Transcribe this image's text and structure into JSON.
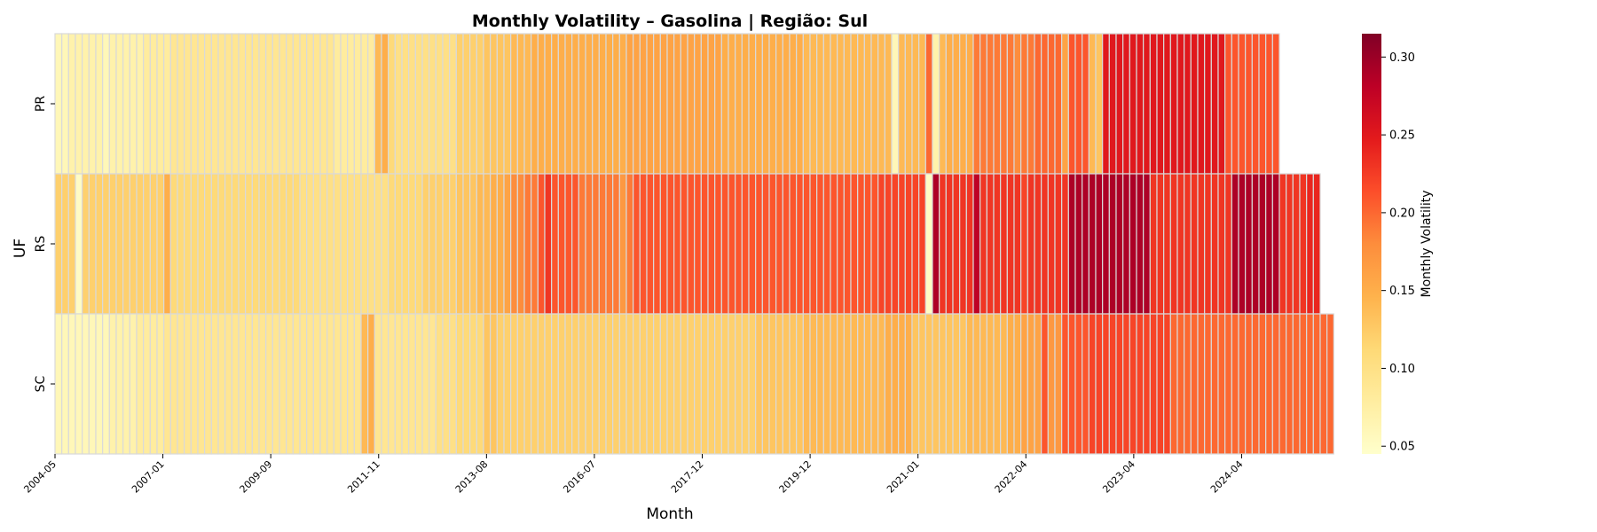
{
  "chart_data": {
    "type": "heatmap",
    "title": "Monthly Volatility – Gasolina | Região: Sul",
    "xlabel": "Month",
    "ylabel": "UF",
    "rows": [
      "PR",
      "RS",
      "SC"
    ],
    "x_tick_labels": [
      "2004-05",
      "2007-01",
      "2009-09",
      "2011-11",
      "2013-08",
      "2016-07",
      "2017-12",
      "2019-12",
      "2021-01",
      "2022-04",
      "2023-04",
      "2024-04"
    ],
    "colorbar": {
      "label": "Monthly Volatility",
      "ticks": [
        0.05,
        0.1,
        0.15,
        0.2,
        0.25,
        0.3
      ],
      "vmin": 0.045,
      "vmax": 0.315,
      "colormap": "YlOrRd"
    },
    "values": {
      "PR": [
        0.06,
        0.06,
        0.07,
        0.07,
        0.07,
        0.07,
        0.07,
        0.06,
        0.07,
        0.07,
        0.07,
        0.07,
        0.07,
        0.08,
        0.08,
        0.08,
        0.08,
        0.09,
        0.09,
        0.09,
        0.09,
        0.09,
        0.09,
        0.09,
        0.09,
        0.09,
        0.09,
        0.09,
        0.09,
        0.09,
        0.09,
        0.09,
        0.09,
        0.09,
        0.09,
        0.09,
        0.09,
        0.09,
        0.09,
        0.09,
        0.09,
        0.08,
        0.08,
        0.08,
        0.08,
        0.08,
        0.08,
        0.14,
        0.15,
        0.11,
        0.1,
        0.1,
        0.1,
        0.1,
        0.1,
        0.1,
        0.1,
        0.1,
        0.1,
        0.12,
        0.12,
        0.12,
        0.12,
        0.13,
        0.13,
        0.13,
        0.13,
        0.14,
        0.14,
        0.14,
        0.15,
        0.15,
        0.15,
        0.15,
        0.15,
        0.15,
        0.15,
        0.15,
        0.15,
        0.15,
        0.15,
        0.15,
        0.15,
        0.15,
        0.16,
        0.16,
        0.16,
        0.16,
        0.16,
        0.16,
        0.16,
        0.16,
        0.16,
        0.16,
        0.16,
        0.16,
        0.16,
        0.16,
        0.15,
        0.15,
        0.15,
        0.15,
        0.15,
        0.15,
        0.15,
        0.15,
        0.15,
        0.15,
        0.15,
        0.15,
        0.14,
        0.14,
        0.14,
        0.14,
        0.14,
        0.14,
        0.14,
        0.14,
        0.14,
        0.14,
        0.14,
        0.14,
        0.14,
        0.06,
        0.14,
        0.14,
        0.14,
        0.14,
        0.2,
        0.07,
        0.14,
        0.15,
        0.15,
        0.15,
        0.15,
        0.19,
        0.19,
        0.19,
        0.19,
        0.19,
        0.19,
        0.18,
        0.19,
        0.19,
        0.2,
        0.2,
        0.2,
        0.2,
        0.16,
        0.21,
        0.21,
        0.21,
        0.14,
        0.13,
        0.25,
        0.25,
        0.25,
        0.25,
        0.25,
        0.25,
        0.25,
        0.25,
        0.25,
        0.25,
        0.25,
        0.25,
        0.25,
        0.25,
        0.25,
        0.25,
        0.25,
        0.25,
        0.21,
        0.21,
        0.21,
        0.21,
        0.21,
        0.21,
        0.21,
        0.21
      ],
      "RS": [
        0.12,
        0.12,
        0.12,
        0.05,
        0.12,
        0.12,
        0.12,
        0.12,
        0.12,
        0.12,
        0.12,
        0.12,
        0.12,
        0.12,
        0.12,
        0.12,
        0.15,
        0.11,
        0.11,
        0.11,
        0.11,
        0.11,
        0.11,
        0.11,
        0.11,
        0.11,
        0.11,
        0.11,
        0.11,
        0.11,
        0.11,
        0.11,
        0.11,
        0.11,
        0.11,
        0.11,
        0.1,
        0.1,
        0.1,
        0.1,
        0.1,
        0.1,
        0.1,
        0.1,
        0.1,
        0.1,
        0.1,
        0.1,
        0.1,
        0.11,
        0.11,
        0.11,
        0.11,
        0.11,
        0.12,
        0.12,
        0.12,
        0.12,
        0.12,
        0.13,
        0.13,
        0.13,
        0.14,
        0.14,
        0.15,
        0.15,
        0.16,
        0.18,
        0.18,
        0.19,
        0.19,
        0.21,
        0.23,
        0.21,
        0.21,
        0.21,
        0.21,
        0.19,
        0.19,
        0.19,
        0.19,
        0.19,
        0.19,
        0.17,
        0.19,
        0.21,
        0.21,
        0.21,
        0.21,
        0.21,
        0.21,
        0.21,
        0.21,
        0.21,
        0.21,
        0.21,
        0.21,
        0.21,
        0.21,
        0.21,
        0.21,
        0.21,
        0.21,
        0.21,
        0.21,
        0.21,
        0.21,
        0.21,
        0.21,
        0.21,
        0.21,
        0.21,
        0.21,
        0.21,
        0.21,
        0.21,
        0.21,
        0.21,
        0.21,
        0.21,
        0.21,
        0.22,
        0.22,
        0.22,
        0.22,
        0.22,
        0.22,
        0.22,
        0.05,
        0.29,
        0.23,
        0.23,
        0.23,
        0.23,
        0.23,
        0.28,
        0.23,
        0.23,
        0.23,
        0.23,
        0.23,
        0.23,
        0.22,
        0.23,
        0.23,
        0.23,
        0.23,
        0.23,
        0.23,
        0.29,
        0.29,
        0.29,
        0.29,
        0.29,
        0.29,
        0.29,
        0.29,
        0.29,
        0.29,
        0.29,
        0.29,
        0.23,
        0.23,
        0.23,
        0.23,
        0.23,
        0.23,
        0.23,
        0.23,
        0.23,
        0.23,
        0.23,
        0.23,
        0.29,
        0.29,
        0.29,
        0.29,
        0.29,
        0.29,
        0.29,
        0.23,
        0.23,
        0.23,
        0.23,
        0.24,
        0.24
      ],
      "SC": [
        0.06,
        0.06,
        0.06,
        0.06,
        0.06,
        0.06,
        0.06,
        0.06,
        0.07,
        0.07,
        0.07,
        0.07,
        0.08,
        0.08,
        0.08,
        0.08,
        0.09,
        0.09,
        0.09,
        0.09,
        0.09,
        0.09,
        0.09,
        0.09,
        0.09,
        0.09,
        0.09,
        0.09,
        0.09,
        0.09,
        0.09,
        0.09,
        0.09,
        0.09,
        0.09,
        0.09,
        0.09,
        0.09,
        0.09,
        0.09,
        0.09,
        0.09,
        0.09,
        0.09,
        0.09,
        0.14,
        0.15,
        0.09,
        0.09,
        0.09,
        0.09,
        0.09,
        0.09,
        0.09,
        0.09,
        0.09,
        0.1,
        0.1,
        0.1,
        0.11,
        0.11,
        0.11,
        0.11,
        0.13,
        0.13,
        0.12,
        0.12,
        0.12,
        0.12,
        0.12,
        0.12,
        0.12,
        0.12,
        0.12,
        0.12,
        0.12,
        0.12,
        0.12,
        0.12,
        0.12,
        0.12,
        0.12,
        0.12,
        0.12,
        0.12,
        0.12,
        0.12,
        0.12,
        0.12,
        0.12,
        0.12,
        0.12,
        0.12,
        0.12,
        0.12,
        0.12,
        0.12,
        0.12,
        0.12,
        0.12,
        0.12,
        0.12,
        0.12,
        0.13,
        0.13,
        0.13,
        0.13,
        0.13,
        0.13,
        0.13,
        0.14,
        0.14,
        0.14,
        0.14,
        0.14,
        0.14,
        0.14,
        0.14,
        0.14,
        0.14,
        0.14,
        0.14,
        0.15,
        0.15,
        0.15,
        0.15,
        0.13,
        0.13,
        0.13,
        0.13,
        0.13,
        0.13,
        0.13,
        0.13,
        0.14,
        0.14,
        0.14,
        0.14,
        0.14,
        0.14,
        0.15,
        0.15,
        0.16,
        0.16,
        0.16,
        0.21,
        0.17,
        0.17,
        0.21,
        0.21,
        0.21,
        0.21,
        0.22,
        0.22,
        0.22,
        0.22,
        0.22,
        0.22,
        0.22,
        0.22,
        0.22,
        0.22,
        0.22,
        0.22,
        0.2,
        0.2,
        0.2,
        0.2,
        0.2,
        0.2,
        0.2,
        0.2,
        0.2,
        0.2,
        0.2,
        0.2,
        0.2,
        0.2,
        0.2,
        0.2,
        0.2,
        0.2,
        0.2,
        0.2,
        0.2,
        0.2,
        0.2,
        0.2
      ]
    }
  }
}
